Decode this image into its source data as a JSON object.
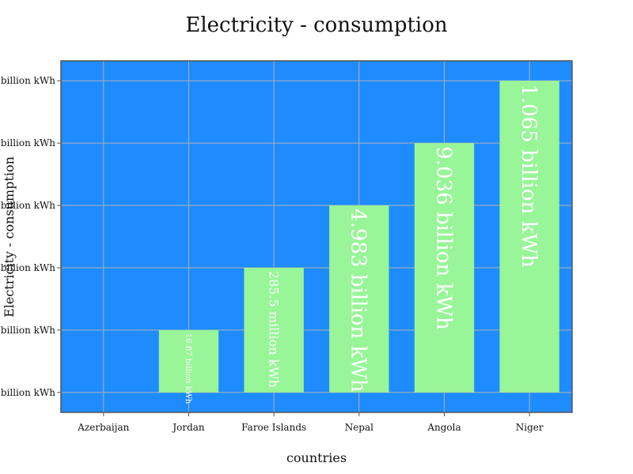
{
  "chart_data": {
    "type": "bar",
    "title": "Electricity - consumption",
    "xlabel": "countries",
    "ylabel": "Electricity - consumption",
    "categories": [
      "Azerbaijan",
      "Jordan",
      "Faroe Islands",
      "Nepal",
      "Angola",
      "Niger"
    ],
    "values": [
      0,
      1,
      2,
      3,
      4,
      5
    ],
    "bar_labels": [
      "",
      "16.87 billion kWh",
      "285.5 million kWh",
      "4.983 billion kWh",
      "9.036 billion kWh",
      "1.065 billion kWh"
    ],
    "yticks": [
      0,
      1,
      2,
      3,
      4,
      5
    ],
    "ytick_labels": [
      "billion kWh",
      "billion kWh",
      "billion kWh",
      "billion kWh",
      "billion kWh",
      "billion kWh"
    ],
    "ylim": [
      -0.32,
      5.32
    ],
    "grid": true,
    "colors": {
      "plot_background": "#1e8cff",
      "bar": "#98f598",
      "grid": "#b0b0b0",
      "frame": "#555555",
      "bar_label": "#ffffff"
    }
  }
}
